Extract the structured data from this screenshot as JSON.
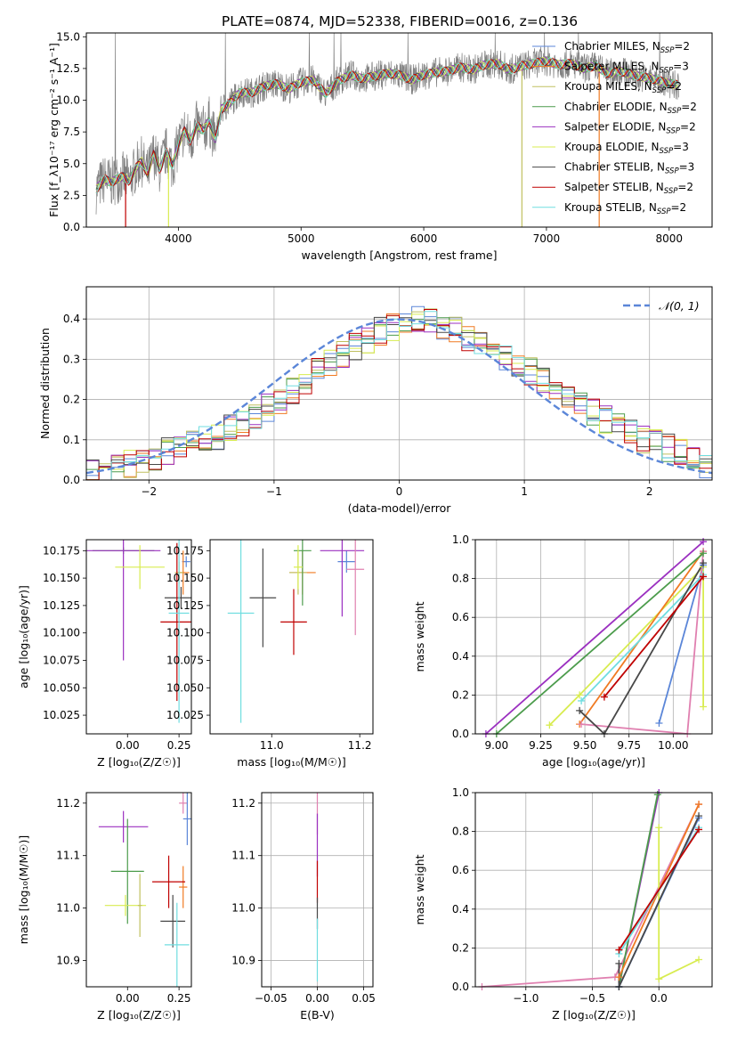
{
  "title": "PLATE=0874, MJD=52338, FIBERID=0016, z=0.136",
  "colors": {
    "Chabrier MILES": "#5b86d8",
    "Salpeter MILES": "#f07a22",
    "Kroupa MILES": "#c0c060",
    "Chabrier ELODIE": "#4c9c4c",
    "Salpeter ELODIE": "#9b30c0",
    "Kroupa ELODIE": "#d8ec50",
    "Chabrier STELIB": "#484848",
    "Salpeter STELIB": "#c00000",
    "Kroupa STELIB": "#70dde0",
    "pink": "#e080b0",
    "data": "#808080",
    "gauss": "#5b86d8"
  },
  "chart_data": [
    {
      "type": "line",
      "title": "PLATE=0874, MJD=52338, FIBERID=0016, z=0.136",
      "xlabel": "wavelength [Angstrom, rest frame]",
      "ylabel": "Flux [f_λ10⁻¹⁷ erg cm⁻² s⁻¹ A⁻¹]",
      "xlim": [
        3250,
        8350
      ],
      "ylim": [
        0,
        15.3
      ],
      "xticks": [
        "4000",
        "5000",
        "6000",
        "7000",
        "8000"
      ],
      "yticks": [
        "0.0",
        "2.5",
        "5.0",
        "7.5",
        "10.0",
        "12.5",
        "15.0"
      ],
      "legend_position": "top-right",
      "legend": [
        "Chabrier MILES, N_SSP=2",
        "Salpeter MILES, N_SSP=3",
        "Kroupa MILES, N_SSP=2",
        "Chabrier ELODIE, N_SSP=2",
        "Salpeter ELODIE, N_SSP=2",
        "Kroupa ELODIE, N_SSP=3",
        "Chabrier STELIB, N_SSP=3",
        "Salpeter STELIB, N_SSP=2",
        "Kroupa STELIB, N_SSP=2"
      ],
      "legend_items": [
        {
          "main": "Chabrier MILES, N",
          "sub": "SSP",
          "tail": "=2"
        },
        {
          "main": "Salpeter MILES, N",
          "sub": "SSP",
          "tail": "=3"
        },
        {
          "main": "Kroupa MILES, N",
          "sub": "SSP",
          "tail": "=2"
        },
        {
          "main": "Chabrier ELODIE, N",
          "sub": "SSP",
          "tail": "=2"
        },
        {
          "main": "Salpeter ELODIE, N",
          "sub": "SSP",
          "tail": "=2"
        },
        {
          "main": "Kroupa ELODIE, N",
          "sub": "SSP",
          "tail": "=3"
        },
        {
          "main": "Chabrier STELIB, N",
          "sub": "SSP",
          "tail": "=3"
        },
        {
          "main": "Salpeter STELIB, N",
          "sub": "SSP",
          "tail": "=2"
        },
        {
          "main": "Kroupa STELIB, N",
          "sub": "SSP",
          "tail": "=2"
        }
      ],
      "model_series": {
        "x": [
          3330,
          3400,
          3450,
          3500,
          3550,
          3600,
          3650,
          3700,
          3750,
          3800,
          3850,
          3900,
          3950,
          4000,
          4050,
          4100,
          4150,
          4200,
          4250,
          4300,
          4350,
          4400,
          4500,
          4600,
          4700,
          4800,
          4900,
          5000,
          5100,
          5200,
          5300,
          5400,
          5500,
          5600,
          5700,
          5800,
          5900,
          6000,
          6100,
          6200,
          6300,
          6400,
          6500,
          6600,
          6700,
          6800,
          6900,
          7000,
          7100,
          7200,
          7300,
          7400,
          7500,
          7600,
          7700,
          7800,
          7900,
          8000,
          8080
        ],
        "y": [
          3.0,
          3.8,
          3.5,
          3.8,
          4.0,
          3.6,
          4.6,
          5.2,
          4.2,
          5.8,
          4.5,
          6.0,
          4.8,
          6.5,
          7.6,
          6.8,
          8.0,
          7.6,
          8.4,
          6.8,
          9.3,
          9.6,
          10.6,
          10.6,
          11.1,
          11.3,
          10.9,
          11.4,
          11.6,
          10.5,
          11.5,
          12.0,
          11.7,
          11.9,
          12.1,
          12.0,
          11.6,
          12.0,
          12.2,
          12.3,
          12.6,
          12.4,
          12.8,
          12.9,
          12.4,
          12.7,
          12.9,
          13.1,
          12.8,
          12.9,
          12.5,
          12.7,
          12.1,
          12.3,
          12.0,
          11.8,
          11.6,
          11.3,
          11.2
        ]
      }
    },
    {
      "type": "bar",
      "xlabel": "(data-model)/error",
      "ylabel": "Normed distribution",
      "xlim": [
        -2.5,
        2.5
      ],
      "ylim": [
        0,
        0.48
      ],
      "xticks": [
        "−2",
        "−1",
        "0",
        "1",
        "2"
      ],
      "yticks": [
        "0.0",
        "0.1",
        "0.2",
        "0.3",
        "0.4"
      ],
      "legend": [
        "𝒩(0, 1)"
      ],
      "legend_position": "top-right",
      "bins": [
        -2.5,
        -2.4,
        -2.3,
        -2.2,
        -2.1,
        -2.0,
        -1.9,
        -1.8,
        -1.7,
        -1.6,
        -1.5,
        -1.4,
        -1.3,
        -1.2,
        -1.1,
        -1.0,
        -0.9,
        -0.8,
        -0.7,
        -0.6,
        -0.5,
        -0.4,
        -0.3,
        -0.2,
        -0.1,
        0.0,
        0.1,
        0.2,
        0.3,
        0.4,
        0.5,
        0.6,
        0.7,
        0.8,
        0.9,
        1.0,
        1.1,
        1.2,
        1.3,
        1.4,
        1.5,
        1.6,
        1.7,
        1.8,
        1.9,
        2.0,
        2.1,
        2.2,
        2.3,
        2.4,
        2.5
      ],
      "base_values": [
        0.02,
        0.02,
        0.03,
        0.04,
        0.05,
        0.06,
        0.07,
        0.08,
        0.09,
        0.1,
        0.11,
        0.13,
        0.14,
        0.16,
        0.18,
        0.2,
        0.22,
        0.24,
        0.27,
        0.29,
        0.31,
        0.33,
        0.35,
        0.37,
        0.38,
        0.4,
        0.4,
        0.39,
        0.38,
        0.37,
        0.35,
        0.34,
        0.32,
        0.3,
        0.28,
        0.27,
        0.25,
        0.23,
        0.21,
        0.19,
        0.17,
        0.15,
        0.14,
        0.12,
        0.1,
        0.09,
        0.08,
        0.07,
        0.06,
        0.04
      ]
    },
    {
      "type": "scatter",
      "xlabel": "Z [log₁₀(Z/Z☉)]",
      "ylabel": "age  [log₁₀(age/yr)]",
      "xlim": [
        -0.2,
        0.31
      ],
      "ylim": [
        10.008,
        10.185
      ],
      "xticks": [
        "0.00",
        "0.25"
      ],
      "yticks": [
        "10.025",
        "10.050",
        "10.075",
        "10.100",
        "10.125",
        "10.150",
        "10.175"
      ],
      "points": [
        {
          "c": "Chabrier MILES",
          "x": 0.285,
          "y": 10.165,
          "xe": 0.02,
          "ye": 0.005
        },
        {
          "c": "Salpeter MILES",
          "x": 0.27,
          "y": 10.155,
          "xe": 0.03,
          "ye": 0.02
        },
        {
          "c": "Kroupa MILES",
          "x": 0.25,
          "y": 10.155,
          "xe": 0.02,
          "ye": 0.01
        },
        {
          "c": "Chabrier ELODIE",
          "x": -0.02,
          "y": 10.175,
          "xe": 0.15,
          "ye": 0.003
        },
        {
          "c": "Salpeter ELODIE",
          "x": -0.02,
          "y": 10.175,
          "xe": 0.18,
          "ye": 0.1
        },
        {
          "c": "Kroupa ELODIE",
          "x": 0.06,
          "y": 10.16,
          "xe": 0.12,
          "ye": 0.02
        },
        {
          "c": "Chabrier STELIB",
          "x": 0.26,
          "y": 10.132,
          "xe": 0.08,
          "ye": 0.01
        },
        {
          "c": "Salpeter STELIB",
          "x": 0.24,
          "y": 10.11,
          "xe": 0.08,
          "ye": 0.072
        },
        {
          "c": "Kroupa STELIB",
          "x": 0.25,
          "y": 10.118,
          "xe": 0.05,
          "ye": 0.1
        }
      ]
    },
    {
      "type": "scatter",
      "xlabel": "mass [log₁₀(M/M☉)]",
      "ylabel": "",
      "xlim": [
        10.86,
        11.23
      ],
      "ylim": [
        10.008,
        10.185
      ],
      "xticks": [
        "11.0",
        "11.2"
      ],
      "yticks": [
        "10.025",
        "10.050",
        "10.075",
        "10.100",
        "10.125",
        "10.150",
        "10.175"
      ],
      "points": [
        {
          "c": "Chabrier MILES",
          "x": 11.17,
          "y": 10.165,
          "xe": 0.02,
          "ye": 0.01
        },
        {
          "c": "Salpeter MILES",
          "x": 11.07,
          "y": 10.155,
          "xe": 0.03,
          "ye": 0.02
        },
        {
          "c": "Kroupa MILES",
          "x": 11.06,
          "y": 10.155,
          "xe": 0.02,
          "ye": 0.02
        },
        {
          "c": "Chabrier ELODIE",
          "x": 11.07,
          "y": 10.175,
          "xe": 0.02,
          "ye": 0.05
        },
        {
          "c": "Salpeter ELODIE",
          "x": 11.16,
          "y": 10.175,
          "xe": 0.05,
          "ye": 0.06
        },
        {
          "c": "Kroupa ELODIE",
          "x": 11.06,
          "y": 10.16,
          "xe": 0.01,
          "ye": 0.02
        },
        {
          "c": "Chabrier STELIB",
          "x": 10.98,
          "y": 10.132,
          "xe": 0.03,
          "ye": 0.045
        },
        {
          "c": "Salpeter STELIB",
          "x": 11.05,
          "y": 10.11,
          "xe": 0.03,
          "ye": 0.03
        },
        {
          "c": "Kroupa STELIB",
          "x": 10.93,
          "y": 10.118,
          "xe": 0.03,
          "ye": 0.1
        },
        {
          "c": "pink",
          "x": 11.19,
          "y": 10.158,
          "xe": 0.02,
          "ye": 0.06
        }
      ]
    },
    {
      "type": "line",
      "xlabel": "age  [log₁₀(age/yr)]",
      "ylabel": "mass weight",
      "xlim": [
        8.88,
        10.22
      ],
      "ylim": [
        0,
        1
      ],
      "xticks": [
        "9.00",
        "9.25",
        "9.50",
        "9.75",
        "10.00"
      ],
      "yticks": [
        "0.0",
        "0.2",
        "0.4",
        "0.6",
        "0.8",
        "1.0"
      ],
      "series": [
        {
          "c": "Kroupa ELODIE",
          "points": [
            [
              9.3,
              0.045
            ],
            [
              9.47,
              0.2
            ],
            [
              10.17,
              0.86
            ],
            [
              10.17,
              0.14
            ]
          ]
        },
        {
          "c": "Chabrier MILES",
          "points": [
            [
              9.92,
              0.055
            ],
            [
              10.17,
              0.87
            ]
          ]
        },
        {
          "c": "Salpeter MILES",
          "points": [
            [
              9.47,
              0.05
            ],
            [
              10.17,
              0.94
            ]
          ]
        },
        {
          "c": "Kroupa STELIB",
          "points": [
            [
              9.48,
              0.17
            ],
            [
              10.17,
              0.82
            ]
          ]
        },
        {
          "c": "pink",
          "points": [
            [
              9.48,
              0.05
            ],
            [
              10.08,
              0.0
            ],
            [
              10.17,
              0.94
            ]
          ]
        },
        {
          "c": "Chabrier STELIB",
          "points": [
            [
              9.47,
              0.12
            ],
            [
              9.61,
              0.0
            ],
            [
              10.17,
              0.88
            ]
          ]
        },
        {
          "c": "Salpeter STELIB",
          "points": [
            [
              9.61,
              0.19
            ],
            [
              10.17,
              0.81
            ]
          ]
        },
        {
          "c": "Salpeter ELODIE",
          "points": [
            [
              8.94,
              0.0
            ],
            [
              10.17,
              0.99
            ]
          ]
        },
        {
          "c": "Chabrier ELODIE",
          "points": [
            [
              9.0,
              0.0
            ],
            [
              10.17,
              0.93
            ]
          ]
        }
      ]
    },
    {
      "type": "scatter",
      "xlabel": "Z [log₁₀(Z/Z☉)]",
      "ylabel": "mass [log₁₀(M/M☉)]",
      "xlim": [
        -0.2,
        0.31
      ],
      "ylim": [
        10.85,
        11.22
      ],
      "xticks": [
        "0.00",
        "0.25"
      ],
      "yticks": [
        "10.9",
        "11.0",
        "11.1",
        "11.2"
      ],
      "points": [
        {
          "c": "pink",
          "x": 0.27,
          "y": 11.2,
          "xe": 0.02,
          "ye": 0.02
        },
        {
          "c": "Chabrier MILES",
          "x": 0.29,
          "y": 11.17,
          "xe": 0.02,
          "ye": 0.05
        },
        {
          "c": "Salpeter ELODIE",
          "x": -0.02,
          "y": 11.155,
          "xe": 0.12,
          "ye": 0.03
        },
        {
          "c": "Chabrier ELODIE",
          "x": 0.0,
          "y": 11.07,
          "xe": 0.08,
          "ye": 0.1
        },
        {
          "c": "Salpeter MILES",
          "x": 0.27,
          "y": 11.04,
          "xe": 0.02,
          "ye": 0.04
        },
        {
          "c": "Salpeter STELIB",
          "x": 0.2,
          "y": 11.05,
          "xe": 0.08,
          "ye": 0.05
        },
        {
          "c": "Kroupa ELODIE",
          "x": -0.01,
          "y": 11.005,
          "xe": 0.1,
          "ye": 0.02
        },
        {
          "c": "Kroupa MILES",
          "x": 0.06,
          "y": 11.005,
          "xe": 0.01,
          "ye": 0.06
        },
        {
          "c": "Chabrier STELIB",
          "x": 0.22,
          "y": 10.975,
          "xe": 0.06,
          "ye": 0.05
        },
        {
          "c": "Kroupa STELIB",
          "x": 0.24,
          "y": 10.93,
          "xe": 0.06,
          "ye": 0.08
        }
      ]
    },
    {
      "type": "scatter",
      "xlabel": "E(B-V)",
      "ylabel": "",
      "xlim": [
        -0.06,
        0.06
      ],
      "ylim": [
        10.85,
        11.22
      ],
      "xticks": [
        "−0.05",
        "0.00",
        "0.05"
      ],
      "yticks": [
        "10.9",
        "11.0",
        "11.1",
        "11.2"
      ],
      "points": [
        {
          "c": "pink",
          "x": 0.0,
          "y": 11.18,
          "xe": 0,
          "ye": 0.04
        },
        {
          "c": "Salpeter ELODIE",
          "x": 0.0,
          "y": 11.12,
          "xe": 0,
          "ye": 0.06
        },
        {
          "c": "Salpeter STELIB",
          "x": 0.0,
          "y": 11.05,
          "xe": 0,
          "ye": 0.04
        },
        {
          "c": "Chabrier STELIB",
          "x": 0.0,
          "y": 10.99,
          "xe": 0,
          "ye": 0.03
        },
        {
          "c": "Kroupa STELIB",
          "x": 0.0,
          "y": 10.92,
          "xe": 0,
          "ye": 0.06
        }
      ]
    },
    {
      "type": "line",
      "xlabel": "Z [log₁₀(Z/Z☉)]",
      "ylabel": "mass weight",
      "xlim": [
        -1.38,
        0.4
      ],
      "ylim": [
        0,
        1
      ],
      "xticks": [
        "−1.0",
        "−0.5",
        "0.0"
      ],
      "yticks": [
        "0.0",
        "0.2",
        "0.4",
        "0.6",
        "0.8",
        "1.0"
      ],
      "series": [
        {
          "c": "pink",
          "points": [
            [
              -1.33,
              0.0
            ],
            [
              -0.33,
              0.05
            ],
            [
              0.3,
              0.94
            ]
          ]
        },
        {
          "c": "Salpeter ELODIE",
          "points": [
            [
              -0.3,
              0.0
            ],
            [
              0.0,
              1.0
            ]
          ]
        },
        {
          "c": "Chabrier ELODIE",
          "points": [
            [
              -0.3,
              0.0
            ],
            [
              -0.01,
              0.99
            ]
          ]
        },
        {
          "c": "Kroupa ELODIE",
          "points": [
            [
              0.0,
              0.82
            ],
            [
              0.0,
              0.04
            ],
            [
              0.3,
              0.14
            ]
          ]
        },
        {
          "c": "Chabrier MILES",
          "points": [
            [
              -0.3,
              0.0
            ],
            [
              0.3,
              0.87
            ]
          ]
        },
        {
          "c": "Salpeter MILES",
          "points": [
            [
              -0.3,
              0.05
            ],
            [
              0.3,
              0.94
            ]
          ]
        },
        {
          "c": "Kroupa STELIB",
          "points": [
            [
              -0.3,
              0.17
            ],
            [
              0.3,
              0.82
            ]
          ]
        },
        {
          "c": "Chabrier STELIB",
          "points": [
            [
              -0.3,
              0.12
            ],
            [
              -0.3,
              0.0
            ],
            [
              0.3,
              0.88
            ]
          ]
        },
        {
          "c": "Salpeter STELIB",
          "points": [
            [
              -0.3,
              0.19
            ],
            [
              0.3,
              0.81
            ]
          ]
        }
      ]
    }
  ]
}
